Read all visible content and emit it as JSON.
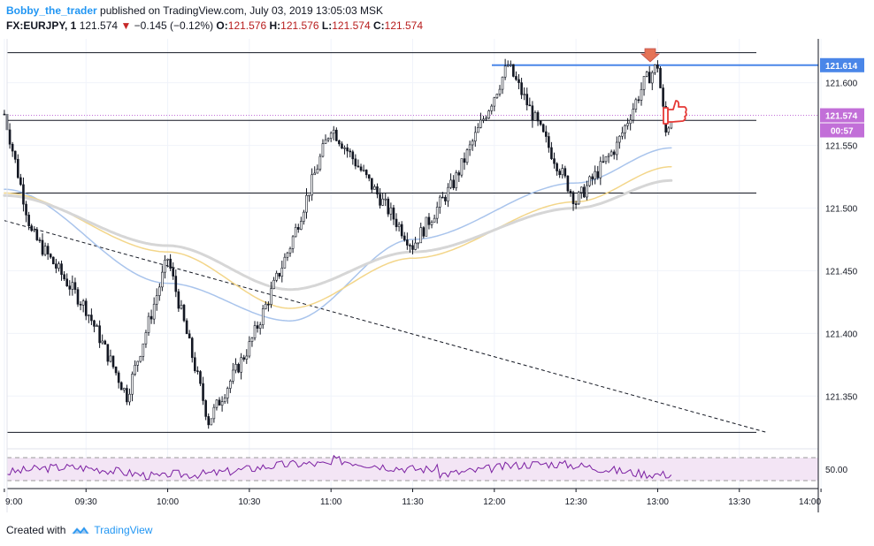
{
  "header": {
    "author": "Bobby_the_trader",
    "published_text": "published on TradingView.com, July 03, 2019 13:05:03 MSK",
    "symbol": "FX:EURJPY, 1",
    "last": "121.574",
    "change": "−0.145 (−0.12%)",
    "o_label": "O:",
    "o_value": "121.576",
    "h_label": "H:",
    "h_value": "121.576",
    "l_label": "L:",
    "l_value": "121.574",
    "c_label": "C:",
    "c_value": "121.574"
  },
  "price_axis": {
    "ticks": [
      "121.600",
      "121.550",
      "121.500",
      "121.450",
      "121.400",
      "121.350"
    ],
    "badge_resistance": "121.614",
    "badge_last": "121.574",
    "badge_timer": "00:57"
  },
  "time_axis": {
    "ticks": [
      "9:00",
      "09:30",
      "10:00",
      "10:30",
      "11:00",
      "11:30",
      "12:00",
      "12:30",
      "13:00",
      "13:30",
      "14:00"
    ]
  },
  "rsi": {
    "level_label": "50.00"
  },
  "footer": {
    "created_with": "Created with",
    "brand": "TradingView"
  },
  "colors": {
    "candle": "#131722",
    "ma_blue": "#a9c4ec",
    "ma_yellow": "#f3d68a",
    "ma_grey": "#d6d6d6",
    "resistance": "#4a86e8",
    "last_price": "#c26fd8",
    "rsi_band": "#f3e5f5",
    "rsi_line": "#7b1fa2",
    "arrow": "#e57357",
    "thumb": "#e53935"
  },
  "chart_data": {
    "type": "candlestick",
    "symbol": "FX:EURJPY",
    "interval": "1",
    "x_range": [
      "9:00",
      "14:00"
    ],
    "y_range": [
      121.31,
      121.635
    ],
    "horizontal_levels": [
      121.624,
      121.614,
      121.574,
      121.57,
      121.512,
      121.321
    ],
    "trendline": {
      "from": [
        "9:00",
        121.49
      ],
      "to": [
        "13:40",
        121.321
      ]
    },
    "keypoints": [
      {
        "t": "9:00",
        "price": 121.575
      },
      {
        "t": "9:10",
        "price": 121.48
      },
      {
        "t": "9:30",
        "price": 121.42
      },
      {
        "t": "9:45",
        "price": 121.35
      },
      {
        "t": "10:00",
        "price": 121.46
      },
      {
        "t": "10:15",
        "price": 121.33
      },
      {
        "t": "10:30",
        "price": 121.39
      },
      {
        "t": "10:45",
        "price": 121.47
      },
      {
        "t": "11:00",
        "price": 121.565
      },
      {
        "t": "11:30",
        "price": 121.47
      },
      {
        "t": "11:45",
        "price": 121.52
      },
      {
        "t": "12:00",
        "price": 121.59
      },
      {
        "t": "12:05",
        "price": 121.614
      },
      {
        "t": "12:30",
        "price": 121.505
      },
      {
        "t": "12:45",
        "price": 121.55
      },
      {
        "t": "12:55",
        "price": 121.6
      },
      {
        "t": "13:00",
        "price": 121.614
      },
      {
        "t": "13:03",
        "price": 121.56
      },
      {
        "t": "13:05",
        "price": 121.574
      }
    ],
    "series": [
      {
        "values_at": [
          "9:00",
          "10:00",
          "10:45",
          "11:30",
          "12:30",
          "13:05"
        ],
        "values": [
          121.515,
          121.44,
          121.41,
          121.475,
          121.52,
          121.548
        ]
      },
      {
        "values_at": [
          "9:00",
          "10:00",
          "10:45",
          "11:30",
          "12:30",
          "13:05"
        ],
        "values": [
          121.512,
          121.465,
          121.42,
          121.46,
          121.505,
          121.533
        ]
      },
      {
        "values_at": [
          "9:00",
          "10:00",
          "10:45",
          "11:30",
          "12:30",
          "13:05"
        ],
        "values": [
          121.51,
          121.47,
          121.435,
          121.465,
          121.5,
          121.522
        ]
      }
    ],
    "rsi": {
      "level": 50.0
    }
  }
}
